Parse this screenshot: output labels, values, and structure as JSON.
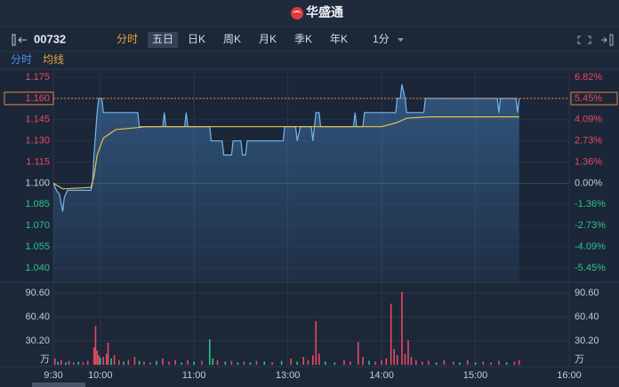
{
  "header": {
    "logo": "华盛通"
  },
  "toolbar": {
    "code": "00732",
    "tabs": [
      "分时",
      "五日",
      "日K",
      "周K",
      "月K",
      "季K",
      "年K",
      "1分"
    ]
  },
  "subtabs": [
    "分时",
    "均线"
  ],
  "chart_data": [
    {
      "type": "line",
      "xlim": [
        0,
        330
      ],
      "xticks": [
        {
          "value": 0,
          "label": "9:30"
        },
        {
          "value": 30,
          "label": "10:00"
        },
        {
          "value": 90,
          "label": "11:00"
        },
        {
          "value": 150,
          "label": "13:00"
        },
        {
          "value": 210,
          "label": "14:00"
        },
        {
          "value": 270,
          "label": "15:00"
        },
        {
          "value": 330,
          "label": "16:00"
        }
      ],
      "ylim": [
        1.04,
        1.175
      ],
      "yticks": [
        1.175,
        {
          "value": 1.16,
          "label": "1.160"
        },
        1.145,
        {
          "value": 1.13,
          "label": "1.130"
        },
        1.115,
        {
          "value": 1.1,
          "label": "1.100"
        },
        1.085,
        {
          "value": 1.07,
          "label": "1.070"
        },
        1.055,
        {
          "value": 1.04,
          "label": "1.040"
        }
      ],
      "y2lim": [
        -5.45,
        6.82
      ],
      "y2ticks": [
        {
          "value": 6.82,
          "label": "6.82%"
        },
        {
          "value": 5.45,
          "label": "5.45%"
        },
        {
          "value": 4.09,
          "label": "4.09%"
        },
        {
          "value": 2.73,
          "label": "2.73%"
        },
        {
          "value": 1.36,
          "label": "1.36%"
        },
        {
          "value": 0,
          "label": "0.00%"
        },
        {
          "value": -1.36,
          "label": "-1.36%"
        },
        {
          "value": -2.73,
          "label": "-2.73%"
        },
        {
          "value": -4.09,
          "label": "-4.09%"
        },
        {
          "value": -5.45,
          "label": "-5.45%"
        }
      ],
      "base": 1.1,
      "grid": true,
      "up_color": "#e84a5f",
      "down_color": "#2bc48a",
      "reference_line": {
        "value": 1.16,
        "color": "#e8873a"
      },
      "series": [
        {
          "color": "#74b7f2",
          "x": [
            0,
            2,
            4,
            6,
            7,
            9,
            24,
            25,
            26,
            28,
            29,
            31,
            32,
            54,
            55,
            70,
            71,
            72,
            84,
            85,
            86,
            100,
            101,
            108,
            109,
            114,
            115,
            120,
            121,
            123,
            124,
            147,
            148,
            155,
            156,
            158,
            165,
            166,
            167,
            168,
            170,
            171,
            192,
            193,
            194,
            198,
            199,
            219,
            220,
            222,
            223,
            225,
            226,
            237,
            238,
            284,
            285,
            286,
            296,
            297,
            298
          ],
          "values": [
            1.1,
            1.095,
            1.092,
            1.08,
            1.09,
            1.095,
            1.095,
            1.1,
            1.12,
            1.15,
            1.16,
            1.16,
            1.15,
            1.15,
            1.14,
            1.14,
            1.15,
            1.14,
            1.14,
            1.15,
            1.14,
            1.14,
            1.13,
            1.13,
            1.12,
            1.12,
            1.13,
            1.13,
            1.12,
            1.12,
            1.13,
            1.13,
            1.14,
            1.14,
            1.13,
            1.14,
            1.14,
            1.13,
            1.14,
            1.15,
            1.15,
            1.14,
            1.14,
            1.15,
            1.14,
            1.14,
            1.15,
            1.15,
            1.16,
            1.16,
            1.17,
            1.16,
            1.15,
            1.15,
            1.16,
            1.16,
            1.15,
            1.16,
            1.16,
            1.15,
            1.16
          ]
        },
        {
          "color": "#e6c34a",
          "x": [
            0,
            6,
            24,
            26,
            28,
            32,
            40,
            60,
            150,
            210,
            220,
            226,
            240,
            298
          ],
          "values": [
            1.1,
            1.096,
            1.097,
            1.105,
            1.12,
            1.132,
            1.138,
            1.14,
            1.14,
            1.14,
            1.143,
            1.146,
            1.147,
            1.147
          ]
        }
      ]
    },
    {
      "type": "bar",
      "xlim": [
        0,
        330
      ],
      "ylim": [
        0,
        90.6
      ],
      "yticks": [
        {
          "value": 90.6,
          "label": "90.60"
        },
        {
          "value": 60.4,
          "label": "60.40"
        },
        {
          "value": 30.2,
          "label": "30.20"
        },
        {
          "value": 0,
          "label": "万"
        }
      ],
      "x": [
        1,
        3,
        5,
        8,
        10,
        13,
        16,
        19,
        22,
        26,
        27,
        28,
        29,
        30,
        32,
        34,
        35,
        37,
        39,
        42,
        45,
        48,
        52,
        55,
        58,
        62,
        66,
        70,
        74,
        78,
        82,
        86,
        90,
        95,
        100,
        102,
        105,
        110,
        114,
        118,
        122,
        126,
        130,
        135,
        140,
        146,
        152,
        156,
        160,
        163,
        166,
        168,
        170,
        174,
        180,
        186,
        190,
        195,
        198,
        202,
        206,
        210,
        213,
        216,
        218,
        220,
        223,
        225,
        227,
        229,
        232,
        236,
        240,
        245,
        250,
        256,
        260,
        265,
        270,
        275,
        280,
        285,
        290,
        295,
        298
      ],
      "values": [
        8,
        4,
        6,
        3,
        5,
        3,
        4,
        3,
        5,
        22,
        49,
        18,
        12,
        9,
        10,
        14,
        28,
        8,
        12,
        6,
        4,
        6,
        10,
        5,
        4,
        3,
        5,
        8,
        4,
        6,
        3,
        6,
        4,
        5,
        32,
        8,
        6,
        4,
        5,
        3,
        4,
        3,
        5,
        4,
        3,
        5,
        8,
        4,
        10,
        6,
        12,
        55,
        14,
        4,
        3,
        6,
        4,
        29,
        10,
        5,
        4,
        6,
        8,
        77,
        20,
        12,
        92,
        14,
        31,
        10,
        6,
        4,
        5,
        3,
        6,
        4,
        3,
        6,
        3,
        4,
        3,
        5,
        3,
        4,
        6
      ],
      "colors": [
        "#e84a5f",
        "#2bc48a",
        "#e84a5f",
        "#2bc48a",
        "#e84a5f",
        "#e84a5f",
        "#2bc48a",
        "#e84a5f",
        "#e84a5f",
        "#e84a5f",
        "#e84a5f",
        "#e84a5f",
        "#e84a5f",
        "#2bc48a",
        "#e84a5f",
        "#e84a5f",
        "#e84a5f",
        "#2bc48a",
        "#e84a5f",
        "#e84a5f",
        "#2bc48a",
        "#e84a5f",
        "#e84a5f",
        "#2bc48a",
        "#e84a5f",
        "#e84a5f",
        "#2bc48a",
        "#e84a5f",
        "#e84a5f",
        "#e84a5f",
        "#2bc48a",
        "#e84a5f",
        "#2bc48a",
        "#e84a5f",
        "#2bc48a",
        "#2bc48a",
        "#e84a5f",
        "#2bc48a",
        "#e84a5f",
        "#2bc48a",
        "#e84a5f",
        "#2bc48a",
        "#e84a5f",
        "#2bc48a",
        "#e84a5f",
        "#2bc48a",
        "#e84a5f",
        "#2bc48a",
        "#e84a5f",
        "#e84a5f",
        "#e84a5f",
        "#e84a5f",
        "#e84a5f",
        "#2bc48a",
        "#2bc48a",
        "#e84a5f",
        "#e84a5f",
        "#e84a5f",
        "#e84a5f",
        "#2bc48a",
        "#e84a5f",
        "#e84a5f",
        "#e84a5f",
        "#e84a5f",
        "#e84a5f",
        "#e84a5f",
        "#e84a5f",
        "#e84a5f",
        "#e84a5f",
        "#e84a5f",
        "#e84a5f",
        "#e84a5f",
        "#e84a5f",
        "#2bc48a",
        "#e84a5f",
        "#e84a5f",
        "#2bc48a",
        "#e84a5f",
        "#2bc48a",
        "#e84a5f",
        "#e84a5f",
        "#e84a5f",
        "#2bc48a",
        "#e84a5f",
        "#e84a5f"
      ]
    }
  ]
}
